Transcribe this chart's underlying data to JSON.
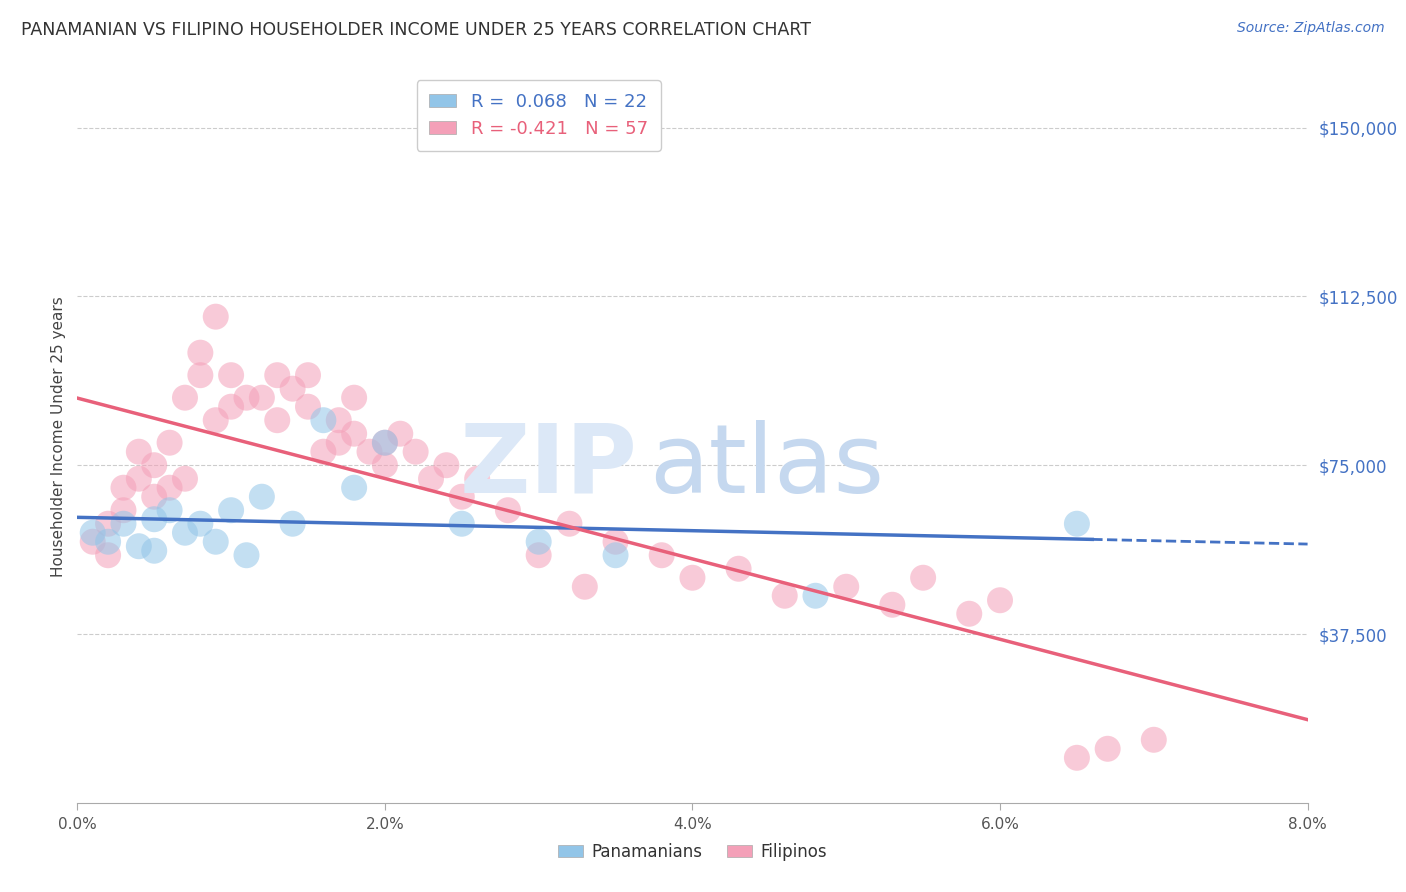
{
  "title": "PANAMANIAN VS FILIPINO HOUSEHOLDER INCOME UNDER 25 YEARS CORRELATION CHART",
  "source": "Source: ZipAtlas.com",
  "ylabel": "Householder Income Under 25 years",
  "panamanian_R": 0.068,
  "panamanian_N": 22,
  "filipino_R": -0.421,
  "filipino_N": 57,
  "xlim": [
    0.0,
    0.08
  ],
  "ylim": [
    0,
    162500
  ],
  "yticks": [
    37500,
    75000,
    112500,
    150000
  ],
  "ytick_labels": [
    "$37,500",
    "$75,000",
    "$112,500",
    "$150,000"
  ],
  "xticks": [
    0.0,
    0.02,
    0.04,
    0.06,
    0.08
  ],
  "xtick_labels": [
    "0.0%",
    "2.0%",
    "4.0%",
    "6.0%",
    "8.0%"
  ],
  "background_color": "#ffffff",
  "panama_color": "#92C5E8",
  "filipino_color": "#F4A0B8",
  "panama_line_color": "#4472C4",
  "filipino_line_color": "#E8607A",
  "panama_x": [
    0.001,
    0.002,
    0.003,
    0.004,
    0.005,
    0.005,
    0.006,
    0.007,
    0.008,
    0.009,
    0.01,
    0.011,
    0.012,
    0.014,
    0.016,
    0.018,
    0.02,
    0.025,
    0.03,
    0.035,
    0.048,
    0.065
  ],
  "panama_y": [
    60000,
    58000,
    62000,
    57000,
    63000,
    56000,
    65000,
    60000,
    62000,
    58000,
    65000,
    55000,
    68000,
    62000,
    85000,
    70000,
    80000,
    62000,
    58000,
    55000,
    46000,
    62000
  ],
  "filipino_x": [
    0.001,
    0.002,
    0.002,
    0.003,
    0.003,
    0.004,
    0.004,
    0.005,
    0.005,
    0.006,
    0.006,
    0.007,
    0.007,
    0.008,
    0.008,
    0.009,
    0.009,
    0.01,
    0.01,
    0.011,
    0.012,
    0.013,
    0.013,
    0.014,
    0.015,
    0.015,
    0.016,
    0.017,
    0.017,
    0.018,
    0.018,
    0.019,
    0.02,
    0.02,
    0.021,
    0.022,
    0.023,
    0.024,
    0.025,
    0.026,
    0.028,
    0.03,
    0.032,
    0.033,
    0.035,
    0.038,
    0.04,
    0.043,
    0.046,
    0.05,
    0.053,
    0.055,
    0.058,
    0.06,
    0.065,
    0.067,
    0.07
  ],
  "filipino_y": [
    58000,
    62000,
    55000,
    65000,
    70000,
    72000,
    78000,
    68000,
    75000,
    70000,
    80000,
    72000,
    90000,
    95000,
    100000,
    85000,
    108000,
    88000,
    95000,
    90000,
    90000,
    95000,
    85000,
    92000,
    88000,
    95000,
    78000,
    80000,
    85000,
    82000,
    90000,
    78000,
    80000,
    75000,
    82000,
    78000,
    72000,
    75000,
    68000,
    72000,
    65000,
    55000,
    62000,
    48000,
    58000,
    55000,
    50000,
    52000,
    46000,
    48000,
    44000,
    50000,
    42000,
    45000,
    10000,
    12000,
    14000
  ]
}
